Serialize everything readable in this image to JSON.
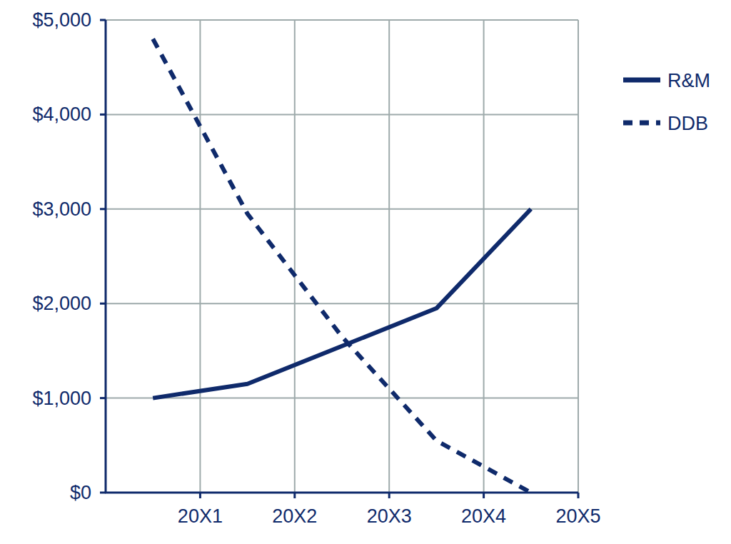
{
  "chart_data": {
    "type": "line",
    "x": [
      0.5,
      1.5,
      2.5,
      3.5,
      4.5
    ],
    "xlim": [
      0,
      5
    ],
    "xticks": [
      {
        "value": 1,
        "label": "20X1"
      },
      {
        "value": 2,
        "label": "20X2"
      },
      {
        "value": 3,
        "label": "20X3"
      },
      {
        "value": 4,
        "label": "20X4"
      },
      {
        "value": 5,
        "label": "20X5"
      }
    ],
    "ylim": [
      0,
      5000
    ],
    "yticks": [
      {
        "value": 0,
        "label": "$0"
      },
      {
        "value": 1000,
        "label": "$1,000"
      },
      {
        "value": 2000,
        "label": "$2,000"
      },
      {
        "value": 3000,
        "label": "$3,000"
      },
      {
        "value": 4000,
        "label": "$4,000"
      },
      {
        "value": 5000,
        "label": "$5,000"
      }
    ],
    "grid": true,
    "legend": "right",
    "series": [
      {
        "name": "R&M",
        "color": "#0f2a6b",
        "line_style": "solid",
        "values": [
          1000,
          1150,
          1550,
          1950,
          3000
        ]
      },
      {
        "name": "DDB",
        "color": "#0f2a6b",
        "line_style": "dashed",
        "values": [
          4800,
          2950,
          1650,
          550,
          0
        ]
      }
    ]
  }
}
